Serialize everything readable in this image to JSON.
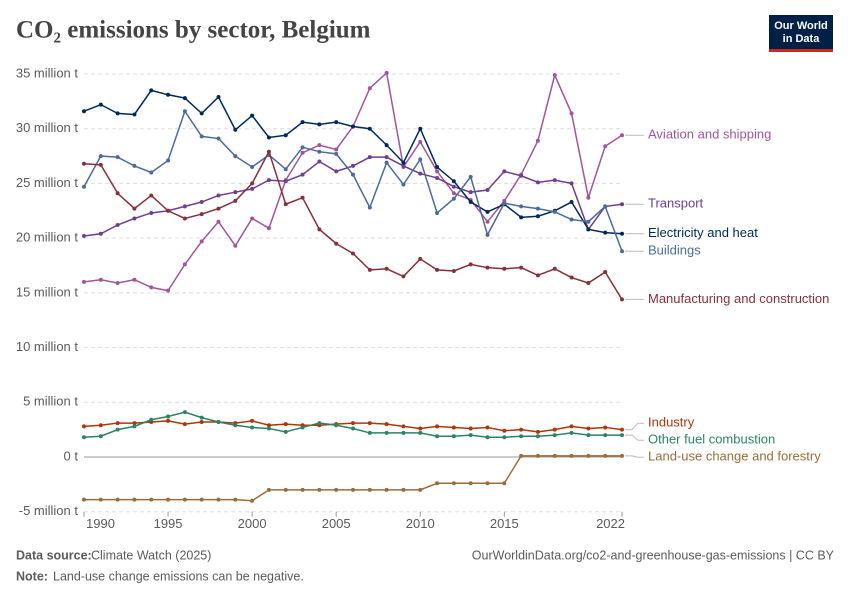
{
  "chart_data": {
    "type": "line",
    "title": "CO₂ emissions by sector, Belgium",
    "logo": [
      "Our World",
      "in Data"
    ],
    "source_label": "Data source:",
    "source": "Climate Watch (2025)",
    "url": "OurWorldinData.org/co2-and-greenhouse-gas-emissions | CC BY",
    "note_label": "Note:",
    "note": "Land-use change emissions can be negative.",
    "x": [
      1990,
      1991,
      1992,
      1993,
      1994,
      1995,
      1996,
      1997,
      1998,
      1999,
      2000,
      2001,
      2002,
      2003,
      2004,
      2005,
      2006,
      2007,
      2008,
      2009,
      2010,
      2011,
      2012,
      2013,
      2014,
      2015,
      2016,
      2017,
      2018,
      2019,
      2020,
      2021,
      2022
    ],
    "xlim": [
      1990,
      2022
    ],
    "xticks": [
      1990,
      1995,
      2000,
      2005,
      2010,
      2015,
      2022
    ],
    "ylim": [
      -5,
      35
    ],
    "yticks": [
      {
        "value": -5,
        "label": "-5 million t"
      },
      {
        "value": 0,
        "label": "0 t"
      },
      {
        "value": 5,
        "label": "5 million t"
      },
      {
        "value": 10,
        "label": "10 million t"
      },
      {
        "value": 15,
        "label": "15 million t"
      },
      {
        "value": 20,
        "label": "20 million t"
      },
      {
        "value": 25,
        "label": "25 million t"
      },
      {
        "value": 30,
        "label": "30 million t"
      },
      {
        "value": 35,
        "label": "35 million t"
      }
    ],
    "grid": true,
    "series": [
      {
        "name": "Aviation and shipping",
        "color": "#a2559c",
        "values": [
          16.0,
          16.2,
          15.9,
          16.2,
          15.5,
          15.2,
          17.6,
          19.7,
          21.5,
          19.3,
          21.8,
          20.9,
          25.3,
          27.8,
          28.5,
          28.1,
          30.2,
          33.7,
          35.1,
          26.5,
          28.8,
          26.1,
          24.1,
          23.5,
          21.5,
          23.4,
          25.8,
          28.9,
          34.9,
          31.4,
          23.7,
          28.4,
          29.4
        ]
      },
      {
        "name": "Transport",
        "color": "#6d3e91",
        "values": [
          20.2,
          20.4,
          21.2,
          21.8,
          22.3,
          22.5,
          22.9,
          23.3,
          23.9,
          24.2,
          24.5,
          25.3,
          25.2,
          25.8,
          27.0,
          26.1,
          26.6,
          27.4,
          27.4,
          26.6,
          25.9,
          25.5,
          24.7,
          24.2,
          24.4,
          26.1,
          25.7,
          25.1,
          25.3,
          25.0,
          20.8,
          22.9,
          23.1
        ]
      },
      {
        "name": "Electricity and heat",
        "color": "#00295b",
        "values": [
          31.6,
          32.2,
          31.4,
          31.3,
          33.5,
          33.1,
          32.8,
          31.4,
          32.9,
          29.9,
          31.2,
          29.2,
          29.4,
          30.6,
          30.4,
          30.6,
          30.2,
          30.0,
          28.5,
          26.9,
          30.0,
          26.5,
          25.2,
          23.3,
          22.4,
          23.1,
          21.9,
          22.0,
          22.5,
          23.3,
          20.8,
          20.5,
          20.4
        ]
      },
      {
        "name": "Buildings",
        "color": "#4c6a9c",
        "values": [
          24.7,
          27.5,
          27.4,
          26.6,
          26.0,
          27.1,
          31.6,
          29.3,
          29.1,
          27.5,
          26.5,
          27.6,
          26.3,
          28.3,
          27.9,
          27.7,
          25.8,
          22.8,
          26.9,
          24.9,
          27.2,
          22.3,
          23.6,
          25.6,
          20.3,
          23.2,
          22.9,
          22.7,
          22.4,
          21.7,
          21.5,
          22.9,
          18.8
        ]
      },
      {
        "name": "Manufacturing and construction",
        "color": "#883039",
        "values": [
          26.8,
          26.7,
          24.1,
          22.7,
          23.9,
          22.5,
          21.8,
          22.2,
          22.7,
          23.4,
          25.0,
          27.9,
          23.1,
          23.7,
          20.8,
          19.5,
          18.6,
          17.1,
          17.2,
          16.5,
          18.1,
          17.1,
          17.0,
          17.6,
          17.3,
          17.2,
          17.3,
          16.6,
          17.2,
          16.4,
          15.9,
          16.9,
          14.4
        ]
      },
      {
        "name": "Industry",
        "color": "#b13507",
        "values": [
          2.8,
          2.9,
          3.1,
          3.1,
          3.2,
          3.3,
          3.0,
          3.2,
          3.2,
          3.1,
          3.3,
          2.9,
          3.0,
          2.9,
          2.9,
          3.0,
          3.1,
          3.1,
          3.0,
          2.8,
          2.6,
          2.8,
          2.7,
          2.6,
          2.7,
          2.4,
          2.5,
          2.3,
          2.5,
          2.8,
          2.6,
          2.7,
          2.5
        ]
      },
      {
        "name": "Other fuel combustion",
        "color": "#2c8465",
        "values": [
          1.8,
          1.9,
          2.5,
          2.8,
          3.4,
          3.7,
          4.1,
          3.6,
          3.2,
          2.9,
          2.7,
          2.6,
          2.3,
          2.7,
          3.1,
          2.9,
          2.6,
          2.2,
          2.2,
          2.2,
          2.2,
          1.9,
          1.9,
          2.0,
          1.8,
          1.8,
          1.9,
          1.9,
          2.0,
          2.2,
          2.0,
          2.0,
          2.0
        ]
      },
      {
        "name": "Land-use change and forestry",
        "color": "#996d39",
        "values": [
          -3.9,
          -3.9,
          -3.9,
          -3.9,
          -3.9,
          -3.9,
          -3.9,
          -3.9,
          -3.9,
          -3.9,
          -4.0,
          -3.0,
          -3.0,
          -3.0,
          -3.0,
          -3.0,
          -3.0,
          -3.0,
          -3.0,
          -3.0,
          -3.0,
          -2.4,
          -2.4,
          -2.4,
          -2.4,
          -2.4,
          0.1,
          0.1,
          0.1,
          0.1,
          0.1,
          0.1,
          0.1
        ]
      }
    ]
  }
}
